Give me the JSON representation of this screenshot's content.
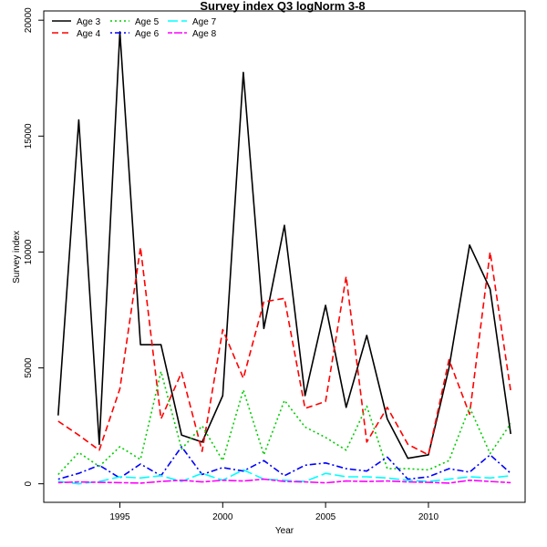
{
  "chart_data": {
    "type": "line",
    "title": "Survey index Q3 logNorm 3-8",
    "xlabel": "Year",
    "ylabel": "Survey index",
    "xlim": [
      1991.3,
      2014.7
    ],
    "ylim": [
      -800,
      20400
    ],
    "x_ticks": [
      1995,
      2000,
      2005,
      2010
    ],
    "y_ticks": [
      0,
      5000,
      10000,
      15000,
      20000
    ],
    "grid": false,
    "legend": "top-left",
    "x": [
      1992,
      1993,
      1994,
      1995,
      1996,
      1997,
      1998,
      1999,
      2000,
      2001,
      2002,
      2003,
      2004,
      2005,
      2006,
      2007,
      2008,
      2009,
      2010,
      2011,
      2012,
      2013,
      2014
    ],
    "series": [
      {
        "name": "Age 3",
        "color": "#000000",
        "dash": "solid",
        "values": [
          2950,
          15700,
          1700,
          19500,
          6000,
          6000,
          2100,
          1800,
          3800,
          17750,
          6700,
          11150,
          3800,
          7700,
          3300,
          6400,
          2800,
          1100,
          1250,
          5000,
          10300,
          8400,
          2150
        ]
      },
      {
        "name": "Age 4",
        "color": "#ff0000",
        "dash": "dashed",
        "values": [
          2700,
          2100,
          1450,
          4100,
          10200,
          2800,
          4800,
          1400,
          6650,
          4550,
          7850,
          8000,
          3250,
          3550,
          8950,
          1800,
          3300,
          1700,
          1250,
          5350,
          3000,
          10000,
          4000
        ]
      },
      {
        "name": "Age 5",
        "color": "#00cd00",
        "dash": "dotted",
        "values": [
          400,
          1350,
          750,
          1600,
          1050,
          4850,
          1500,
          2500,
          1000,
          4050,
          1250,
          3600,
          2450,
          2000,
          1450,
          3350,
          650,
          650,
          600,
          1000,
          3300,
          1300,
          2600
        ]
      },
      {
        "name": "Age 6",
        "color": "#0000ff",
        "dash": "dotdash",
        "values": [
          200,
          450,
          800,
          250,
          850,
          350,
          1600,
          400,
          700,
          550,
          1000,
          350,
          800,
          900,
          650,
          550,
          1150,
          200,
          300,
          650,
          500,
          1250,
          450
        ]
      },
      {
        "name": "Age 7",
        "color": "#00ffff",
        "dash": "longdash",
        "values": [
          100,
          0,
          100,
          300,
          250,
          350,
          100,
          450,
          150,
          600,
          200,
          150,
          100,
          450,
          300,
          300,
          250,
          150,
          100,
          200,
          300,
          250,
          350
        ]
      },
      {
        "name": "Age 8",
        "color": "#ff00ff",
        "dash": "twodash",
        "values": [
          50,
          80,
          60,
          50,
          30,
          100,
          150,
          80,
          150,
          120,
          200,
          100,
          80,
          40,
          120,
          100,
          120,
          80,
          60,
          30,
          150,
          100,
          50
        ]
      }
    ]
  }
}
